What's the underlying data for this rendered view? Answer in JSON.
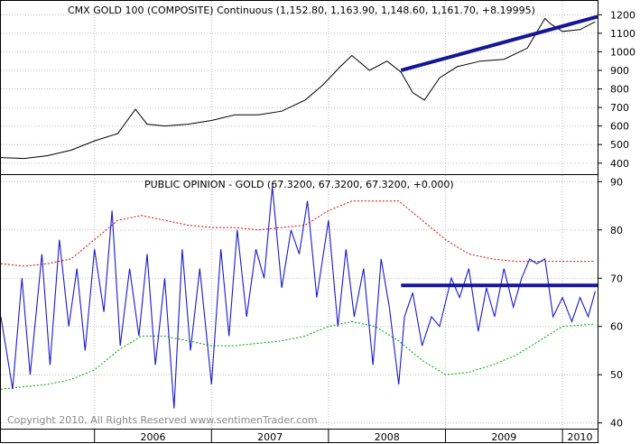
{
  "copyright": "Copyright 2010, All Rights Reserved  www.sentimenTrader.com",
  "colors": {
    "price_line": "#000000",
    "opinion_line": "#1a1acc",
    "upper_band": "#e00000",
    "lower_band": "#00a000",
    "trendline": "#161696",
    "grid": "#bdbdbd",
    "frame": "#000000",
    "copyright_text": "#8a8a8a"
  },
  "x_axis": {
    "labels": [
      "2006",
      "2007",
      "2008",
      "2009",
      "2010"
    ],
    "year_starts": [
      2006,
      2007,
      2008,
      2009,
      2010
    ],
    "range": [
      2005.2,
      2010.3
    ]
  },
  "chart_data": [
    {
      "type": "line",
      "title": "CMX GOLD 100 (COMPOSITE) Continuous (1,152.80, 1,163.90, 1,148.60, 1,161.70, +8.19995)",
      "ylim": [
        355,
        1260
      ],
      "yticks": [
        400,
        500,
        600,
        700,
        800,
        900,
        1000,
        1100,
        1200
      ],
      "grid": true,
      "series": [
        {
          "style": "price",
          "x": [
            2005.2,
            2005.4,
            2005.6,
            2005.8,
            2006.0,
            2006.2,
            2006.35,
            2006.45,
            2006.6,
            2006.8,
            2007.0,
            2007.2,
            2007.4,
            2007.6,
            2007.8,
            2007.95,
            2008.1,
            2008.2,
            2008.35,
            2008.5,
            2008.62,
            2008.72,
            2008.82,
            2008.95,
            2009.1,
            2009.3,
            2009.5,
            2009.7,
            2009.85,
            2009.9,
            2010.0,
            2010.15,
            2010.28
          ],
          "values": [
            430,
            425,
            440,
            470,
            520,
            560,
            690,
            610,
            600,
            610,
            630,
            660,
            660,
            680,
            740,
            820,
            920,
            980,
            900,
            950,
            890,
            780,
            740,
            860,
            920,
            950,
            960,
            1020,
            1180,
            1150,
            1110,
            1120,
            1162
          ]
        }
      ],
      "trendlines": [
        {
          "x": [
            2008.62,
            2010.3
          ],
          "values": [
            900,
            1190
          ]
        }
      ]
    },
    {
      "type": "line",
      "title": "PUBLIC OPINION - GOLD (67.3200, 67.3200, 67.3200, +0.000)",
      "ylim": [
        39,
        91
      ],
      "yticks": [
        40,
        50,
        60,
        70,
        80,
        90
      ],
      "grid": true,
      "series": [
        {
          "style": "opinion",
          "x": [
            2005.2,
            2005.3,
            2005.38,
            2005.45,
            2005.55,
            2005.62,
            2005.7,
            2005.78,
            2005.85,
            2005.92,
            2006.0,
            2006.08,
            2006.15,
            2006.22,
            2006.3,
            2006.38,
            2006.45,
            2006.52,
            2006.6,
            2006.68,
            2006.75,
            2006.82,
            2006.9,
            2007.0,
            2007.08,
            2007.15,
            2007.22,
            2007.3,
            2007.38,
            2007.45,
            2007.52,
            2007.6,
            2007.68,
            2007.75,
            2007.82,
            2007.9,
            2008.0,
            2008.08,
            2008.15,
            2008.22,
            2008.3,
            2008.38,
            2008.45,
            2008.52,
            2008.6,
            2008.65,
            2008.72,
            2008.8,
            2008.88,
            2008.95,
            2009.05,
            2009.12,
            2009.2,
            2009.28,
            2009.35,
            2009.42,
            2009.5,
            2009.58,
            2009.65,
            2009.72,
            2009.78,
            2009.85,
            2009.92,
            2010.0,
            2010.08,
            2010.15,
            2010.22,
            2010.28
          ],
          "values": [
            62,
            47,
            70,
            50,
            75,
            52,
            78,
            60,
            72,
            55,
            76,
            63,
            84,
            56,
            72,
            58,
            75,
            52,
            70,
            43,
            76,
            55,
            72,
            48,
            76,
            58,
            80,
            62,
            76,
            70,
            89,
            68,
            80,
            75,
            86,
            66,
            82,
            60,
            76,
            62,
            72,
            52,
            74,
            64,
            48,
            62,
            67,
            56,
            62,
            60,
            70,
            66,
            72,
            59,
            68,
            62,
            72,
            64,
            70,
            74,
            73,
            74,
            62,
            66,
            61,
            66,
            62,
            67.3
          ]
        },
        {
          "style": "upper_band",
          "x": [
            2005.2,
            2005.4,
            2005.6,
            2005.8,
            2006.0,
            2006.2,
            2006.4,
            2006.6,
            2006.8,
            2007.0,
            2007.2,
            2007.4,
            2007.6,
            2007.8,
            2008.0,
            2008.2,
            2008.4,
            2008.6,
            2008.8,
            2009.0,
            2009.2,
            2009.4,
            2009.6,
            2009.8,
            2010.0,
            2010.28
          ],
          "values": [
            73,
            72.5,
            73,
            74,
            78,
            82,
            83,
            82,
            81,
            80.5,
            80.5,
            80,
            80.5,
            81,
            84,
            86,
            86,
            86,
            82,
            78,
            75,
            74,
            73.5,
            73.5,
            73.5,
            73.5
          ]
        },
        {
          "style": "lower_band",
          "x": [
            2005.2,
            2005.4,
            2005.6,
            2005.8,
            2006.0,
            2006.2,
            2006.4,
            2006.6,
            2006.8,
            2007.0,
            2007.2,
            2007.4,
            2007.6,
            2007.8,
            2008.0,
            2008.2,
            2008.4,
            2008.6,
            2008.8,
            2009.0,
            2009.2,
            2009.4,
            2009.6,
            2009.8,
            2010.0,
            2010.28
          ],
          "values": [
            47,
            47.5,
            48,
            49,
            51,
            55,
            58,
            58,
            57,
            56,
            56,
            56.5,
            57,
            58,
            60,
            61,
            60,
            57,
            53,
            50,
            50.5,
            52,
            54,
            57,
            60,
            60.5
          ]
        }
      ],
      "trendlines": [
        {
          "x": [
            2008.62,
            2010.3
          ],
          "values": [
            68.5,
            68.5
          ]
        }
      ]
    }
  ]
}
